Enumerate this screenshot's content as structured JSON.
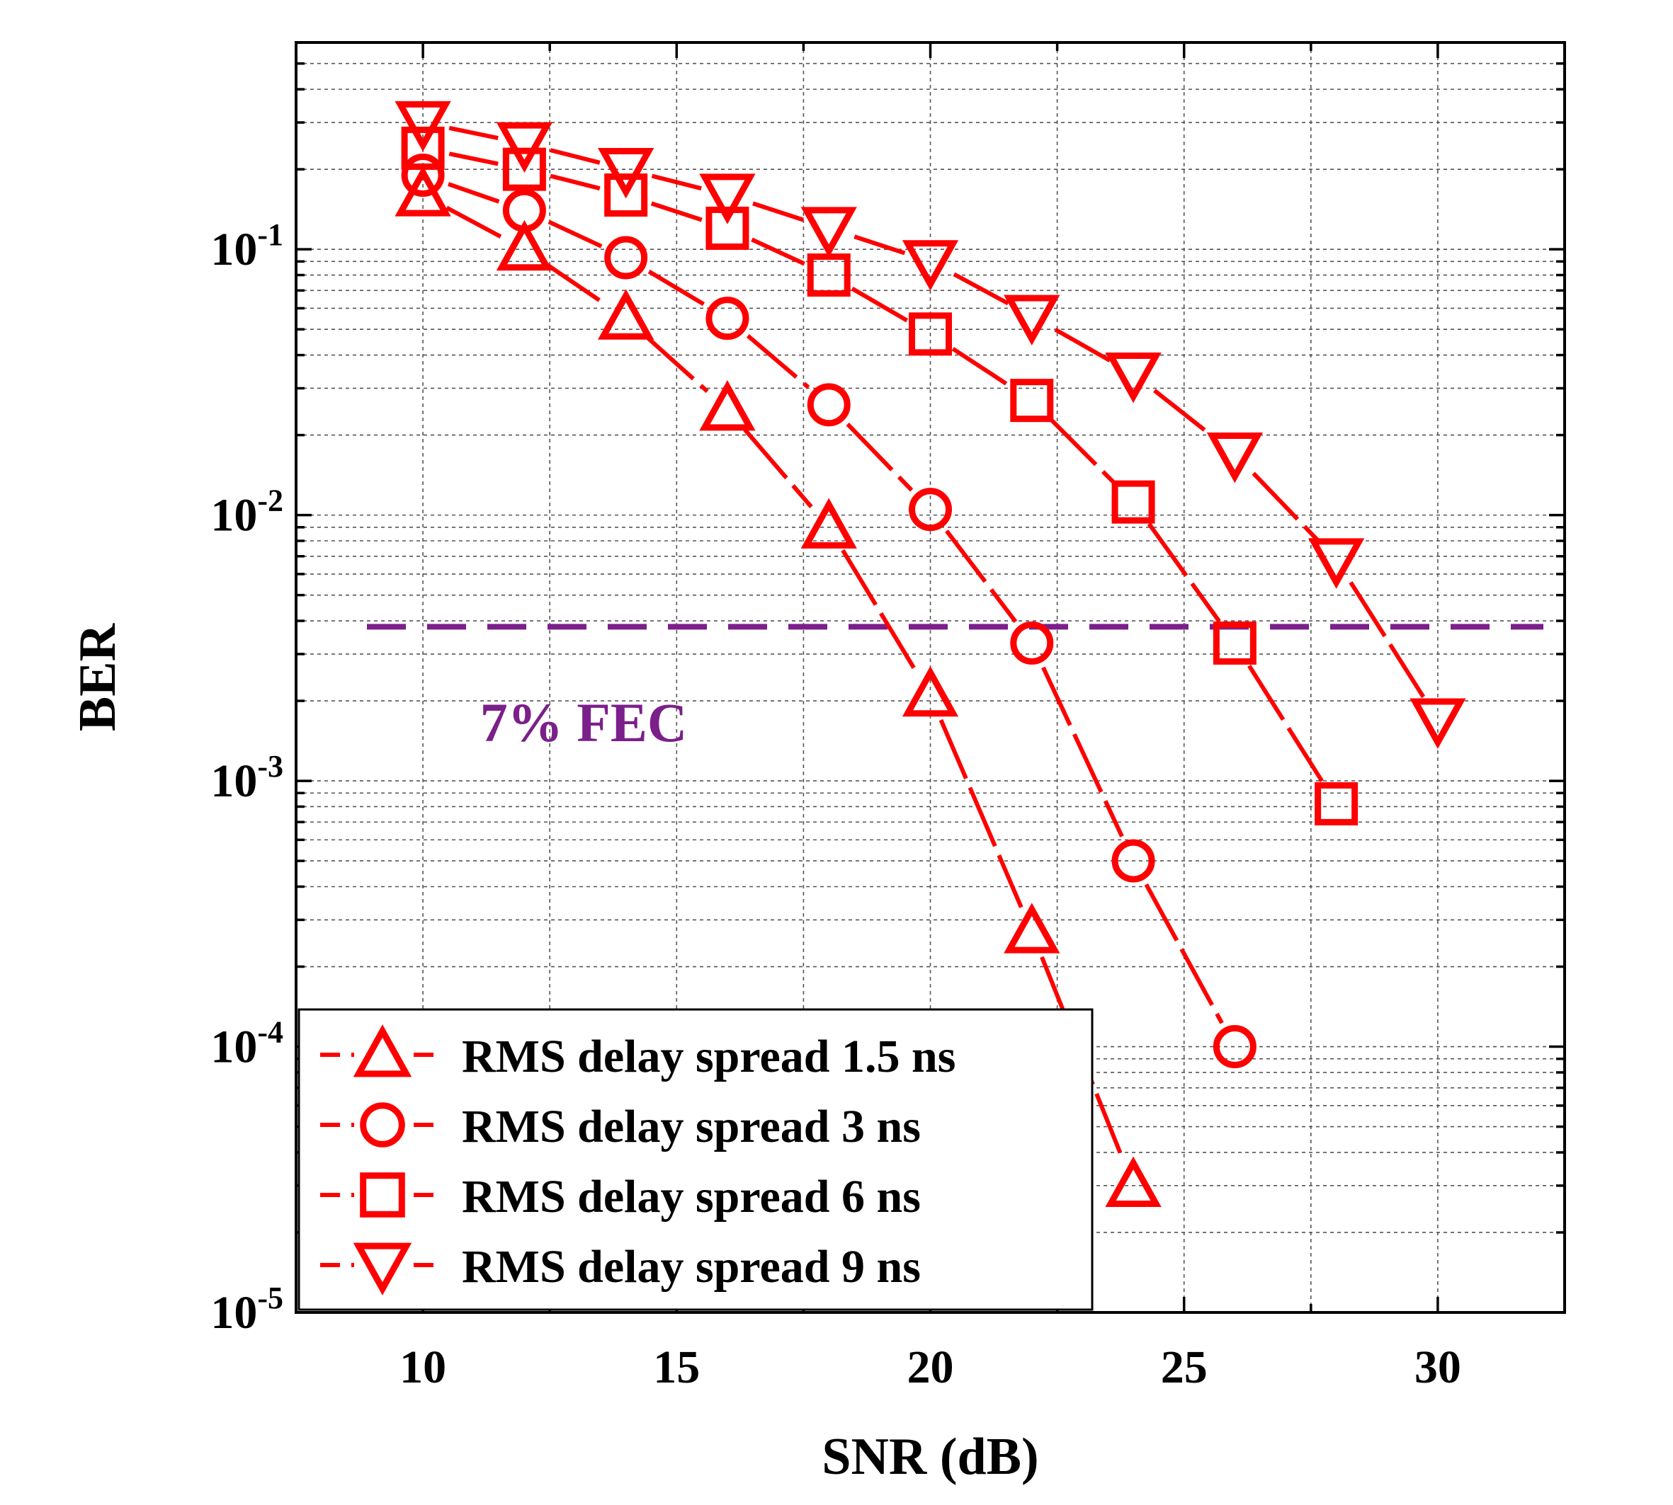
{
  "chart_data": {
    "type": "line",
    "title": "",
    "xlabel": "SNR (dB)",
    "ylabel": "BER",
    "xlim": [
      7.5,
      32.5
    ],
    "ylim": [
      1e-05,
      0.6
    ],
    "yscale": "log",
    "grid": true,
    "legend_position": "bottom-left",
    "x_ticks": [
      {
        "value": 10,
        "label": "10"
      },
      {
        "value": 15,
        "label": "15"
      },
      {
        "value": 20,
        "label": "20"
      },
      {
        "value": 25,
        "label": "25"
      },
      {
        "value": 30,
        "label": "30"
      }
    ],
    "y_ticks": [
      {
        "value": 0.1,
        "base": "10",
        "exp": "-1"
      },
      {
        "value": 0.01,
        "base": "10",
        "exp": "-2"
      },
      {
        "value": 0.001,
        "base": "10",
        "exp": "-3"
      },
      {
        "value": 0.0001,
        "base": "10",
        "exp": "-4"
      },
      {
        "value": 1e-05,
        "base": "10",
        "exp": "-5"
      }
    ],
    "threshold": {
      "label": "7% FEC",
      "value": 0.0038,
      "color": "#7B1F8A"
    },
    "series_color": "#FF0000",
    "series": [
      {
        "name": "RMS delay spread 1.5 ns",
        "marker": "triangle-up",
        "x": [
          10,
          12,
          14,
          16,
          18,
          20,
          22,
          24
        ],
        "y": [
          0.16,
          0.1,
          0.055,
          0.025,
          0.009,
          0.0021,
          0.00027,
          3e-05
        ]
      },
      {
        "name": "RMS delay spread 3 ns",
        "marker": "circle",
        "x": [
          10,
          12,
          14,
          16,
          18,
          20,
          22,
          24,
          26
        ],
        "y": [
          0.19,
          0.14,
          0.093,
          0.055,
          0.026,
          0.0105,
          0.0033,
          0.0005,
          0.0001
        ]
      },
      {
        "name": "RMS delay spread 6 ns",
        "marker": "square",
        "x": [
          10,
          12,
          14,
          16,
          18,
          20,
          22,
          24,
          26,
          28
        ],
        "y": [
          0.24,
          0.2,
          0.16,
          0.12,
          0.08,
          0.048,
          0.027,
          0.0112,
          0.0033,
          0.00082
        ]
      },
      {
        "name": "RMS delay spread 9 ns",
        "marker": "triangle-down",
        "x": [
          10,
          12,
          14,
          16,
          18,
          20,
          22,
          24,
          26,
          28,
          30
        ],
        "y": [
          0.3,
          0.25,
          0.2,
          0.16,
          0.12,
          0.09,
          0.056,
          0.034,
          0.017,
          0.0068,
          0.0017
        ]
      }
    ]
  }
}
